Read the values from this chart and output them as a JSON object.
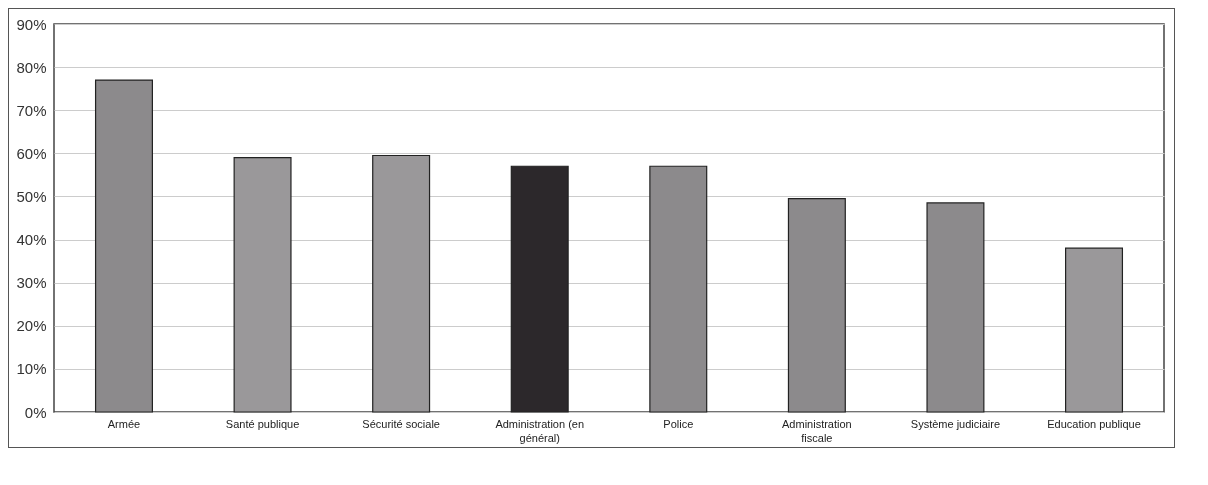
{
  "chart_data": {
    "type": "bar",
    "categories": [
      "Armée",
      "Santé publique",
      "Sécurité sociale",
      "Administration (en général)",
      "Police",
      "Administration fiscale",
      "Système judiciaire",
      "Education publique"
    ],
    "values": [
      77,
      59,
      59.5,
      57,
      57,
      49.5,
      48.5,
      38
    ],
    "colors": [
      "#8c8a8c",
      "#9a989a",
      "#9a989a",
      "#2c282b",
      "#8c8a8c",
      "#8c8a8c",
      "#8c8a8c",
      "#9a989a"
    ],
    "ylim": [
      0,
      90
    ],
    "yticks": [
      {
        "value": 0,
        "label": "0%"
      },
      {
        "value": 10,
        "label": "10%"
      },
      {
        "value": 20,
        "label": "20%"
      },
      {
        "value": 30,
        "label": "30%"
      },
      {
        "value": 40,
        "label": "40%"
      },
      {
        "value": 50,
        "label": "50%"
      },
      {
        "value": 60,
        "label": "60%"
      },
      {
        "value": 70,
        "label": "70%"
      },
      {
        "value": 80,
        "label": "80%"
      },
      {
        "value": 90,
        "label": "90%"
      }
    ],
    "grid": "y"
  }
}
